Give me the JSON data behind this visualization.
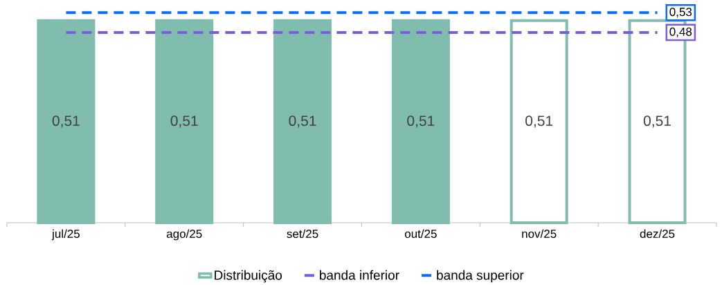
{
  "chart_data": {
    "type": "bar",
    "categories": [
      "jul/25",
      "ago/25",
      "set/25",
      "out/25",
      "nov/25",
      "dez/25"
    ],
    "legend": "bottom",
    "series": [
      {
        "name": "Distribuição",
        "color": "#80bdae",
        "colors": [
          "#80bdae",
          "#80bdae",
          "#80bdae",
          "#80bdae",
          "#ffffff",
          "#ffffff"
        ],
        "values": [
          0.51,
          0.51,
          0.51,
          0.51,
          0.51,
          0.51
        ],
        "value_labels": [
          "0,51",
          "0,51",
          "0,51",
          "0,51",
          "0,51",
          "0,51"
        ]
      },
      {
        "name": "banda inferior",
        "type": "line",
        "line_style": "dashed",
        "color": "#7b5be0",
        "values": [
          0.48,
          0.48,
          0.48,
          0.48,
          0.48,
          0.48
        ],
        "value_labels": [
          null,
          null,
          null,
          null,
          null,
          "0,48"
        ]
      },
      {
        "name": "banda superior",
        "type": "line",
        "line_style": "dashed",
        "color": "#0b6cf4",
        "values": [
          0.53,
          0.53,
          0.53,
          0.53,
          0.53,
          0.53
        ],
        "value_labels": [
          null,
          null,
          null,
          null,
          null,
          "0,53"
        ]
      }
    ]
  }
}
